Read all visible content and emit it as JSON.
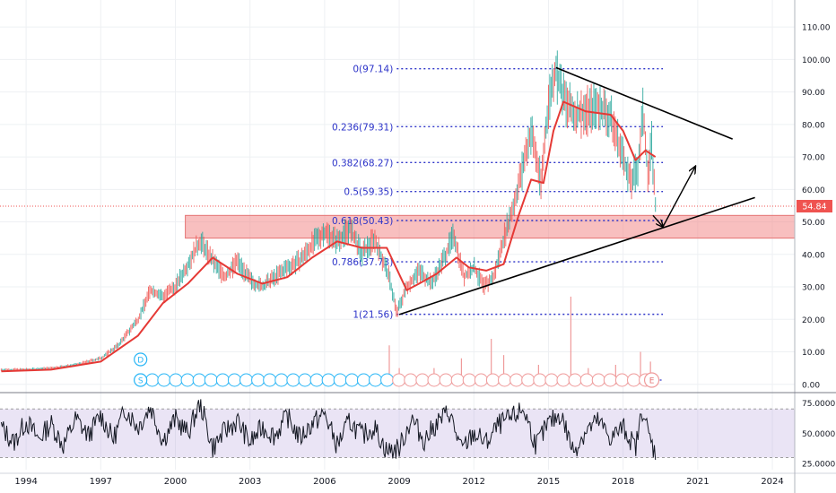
{
  "chart_data": {
    "type": "line",
    "title": "",
    "xlabel": "",
    "ylabel": "",
    "x_ticks": [
      {
        "label": "1994",
        "year": 1994.0
      },
      {
        "label": "1997",
        "year": 1997.0
      },
      {
        "label": "2000",
        "year": 2000.0
      },
      {
        "label": "2003",
        "year": 2003.0
      },
      {
        "label": "2006",
        "year": 2006.0
      },
      {
        "label": "2009",
        "year": 2009.0
      },
      {
        "label": "2012",
        "year": 2012.0
      },
      {
        "label": "2015",
        "year": 2015.0
      },
      {
        "label": "2018",
        "year": 2018.0
      },
      {
        "label": "2021",
        "year": 2021.0
      },
      {
        "label": "2024",
        "year": 2024.0
      }
    ],
    "xlim": [
      1993.0,
      2025.0
    ],
    "price_panel": {
      "ylim": [
        -2,
        115
      ],
      "y_ticks": [
        {
          "value": 0,
          "label": "0.00"
        },
        {
          "value": 10,
          "label": "10.00"
        },
        {
          "value": 20,
          "label": "20.00"
        },
        {
          "value": 30,
          "label": "30.00"
        },
        {
          "value": 40,
          "label": "40.00"
        },
        {
          "value": 50,
          "label": "50.00"
        },
        {
          "value": 60,
          "label": "60.00"
        },
        {
          "value": 70,
          "label": "70.00"
        },
        {
          "value": 80,
          "label": "80.00"
        },
        {
          "value": 90,
          "label": "90.00"
        },
        {
          "value": 100,
          "label": "100.00"
        },
        {
          "value": 110,
          "label": "110.00"
        }
      ],
      "grid": true,
      "last_price": {
        "value": 54.84,
        "label": "54.84",
        "color": "#ef5350"
      },
      "price_series": {
        "x": [
          1993.0,
          1994.0,
          1995.0,
          1996.0,
          1997.0,
          1997.7,
          1998.5,
          1999.0,
          1999.5,
          2000.0,
          2000.5,
          2001.0,
          2001.5,
          2002.0,
          2002.5,
          2003.0,
          2003.5,
          2004.0,
          2004.5,
          2005.0,
          2005.5,
          2006.0,
          2006.5,
          2007.0,
          2007.5,
          2008.0,
          2008.6,
          2008.9,
          2009.3,
          2009.8,
          2010.3,
          2010.8,
          2011.2,
          2011.6,
          2012.0,
          2012.4,
          2012.8,
          2013.2,
          2013.6,
          2014.0,
          2014.3,
          2014.7,
          2015.0,
          2015.3,
          2015.6,
          2016.0,
          2016.5,
          2017.0,
          2017.5,
          2018.0,
          2018.3,
          2018.6,
          2018.8,
          2019.0,
          2019.15,
          2019.3
        ],
        "values": [
          4.5,
          4.5,
          5.0,
          6.0,
          8.0,
          12.0,
          20.0,
          29.0,
          27.0,
          30.0,
          37.0,
          44.0,
          38.0,
          33.0,
          38.0,
          32.0,
          30.0,
          33.0,
          36.0,
          38.0,
          43.0,
          47.0,
          44.0,
          48.0,
          40.0,
          45.0,
          33.0,
          22.0,
          30.0,
          35.0,
          31.0,
          39.0,
          46.0,
          33.0,
          36.0,
          30.0,
          33.0,
          45.0,
          55.0,
          68.0,
          78.0,
          62.0,
          87.0,
          97.0,
          88.0,
          83.0,
          84.0,
          86.0,
          82.0,
          70.0,
          62.0,
          67.0,
          84.0,
          65.0,
          74.0,
          54.84
        ]
      },
      "moving_average": {
        "color": "#e53935",
        "x": [
          1993.0,
          1995.0,
          1997.0,
          1998.5,
          1999.5,
          2000.5,
          2001.5,
          2002.5,
          2003.5,
          2004.5,
          2005.5,
          2006.5,
          2007.5,
          2008.5,
          2009.3,
          2009.8,
          2010.5,
          2011.3,
          2011.8,
          2012.5,
          2013.2,
          2013.8,
          2014.3,
          2014.8,
          2015.2,
          2015.6,
          2016.5,
          2017.5,
          2018.0,
          2018.5,
          2018.9,
          2019.3
        ],
        "values": [
          4.0,
          4.5,
          7.0,
          15.0,
          25.0,
          31.0,
          39.0,
          34.0,
          31.0,
          33.0,
          39.0,
          44.0,
          42.0,
          42.0,
          29.0,
          31.0,
          34.0,
          39.0,
          36.0,
          35.0,
          37.0,
          52.0,
          63.0,
          62.0,
          78.0,
          87.0,
          84.0,
          83.0,
          78.0,
          69.0,
          72.0,
          70.0
        ]
      },
      "fibonacci_levels": [
        {
          "label": "0(97.14)",
          "value": 97.14
        },
        {
          "label": "0.236(79.31)",
          "value": 79.31
        },
        {
          "label": "0.382(68.27)",
          "value": 68.27
        },
        {
          "label": "0.5(59.35)",
          "value": 59.35
        },
        {
          "label": "0.618(50.43)",
          "value": 50.43
        },
        {
          "label": "0.786(37.73)",
          "value": 37.73
        },
        {
          "label": "1(21.56)",
          "value": 21.56
        }
      ],
      "fibonacci_color": "#2b32c8",
      "support_zone": {
        "from": 45.0,
        "to": 52.0,
        "x_start": 2000.4,
        "color": "#f28b8b"
      },
      "trendlines": [
        {
          "name": "falling resistance",
          "points": [
            [
              2015.3,
              97.5
            ],
            [
              2022.4,
              75.5
            ]
          ]
        },
        {
          "name": "rising support",
          "points": [
            [
              2009.0,
              21.5
            ],
            [
              2023.3,
              57.5
            ]
          ]
        }
      ],
      "projection_arrows": [
        {
          "points": [
            [
              2019.2,
              52.0
            ],
            [
              2019.6,
              48.5
            ]
          ]
        },
        {
          "points": [
            [
              2019.6,
              48.5
            ],
            [
              2020.9,
              67.0
            ]
          ]
        }
      ],
      "event_markers": {
        "dividend_label": "D",
        "dividend_year": 1998.6,
        "split_label": "S",
        "earnings_label": "E",
        "earnings_year": 2019.15,
        "first_year": 1998.6,
        "last_year": 2018.9,
        "recent_from": 2008.6,
        "old_color": "#29b6f6",
        "recent_color": "#ef9a9a"
      },
      "volume_bars": [
        {
          "year": 2008.6,
          "value": 12.0
        },
        {
          "year": 2009.0,
          "value": 5.0
        },
        {
          "year": 2010.4,
          "value": 5.0
        },
        {
          "year": 2011.5,
          "value": 8.0
        },
        {
          "year": 2012.7,
          "value": 14.0
        },
        {
          "year": 2013.2,
          "value": 9.0
        },
        {
          "year": 2014.6,
          "value": 6.0
        },
        {
          "year": 2015.9,
          "value": 27.0
        },
        {
          "year": 2016.6,
          "value": 5.0
        },
        {
          "year": 2017.7,
          "value": 6.0
        },
        {
          "year": 2018.7,
          "value": 10.0
        },
        {
          "year": 2019.1,
          "value": 7.0
        }
      ]
    },
    "oscillator_panel": {
      "ylim": [
        20,
        82
      ],
      "y_ticks": [
        {
          "value": 25,
          "label": "25.0000"
        },
        {
          "value": 50,
          "label": "50.0000"
        },
        {
          "value": 75,
          "label": "75.0000"
        }
      ],
      "band": [
        30,
        70
      ],
      "band_color": "#b39ddb",
      "series": {
        "x": [
          1993.0,
          1993.5,
          1994.0,
          1994.5,
          1995.0,
          1995.5,
          1996.0,
          1996.5,
          1997.0,
          1997.5,
          1998.0,
          1998.5,
          1999.0,
          1999.5,
          2000.0,
          2000.5,
          2001.0,
          2001.5,
          2002.0,
          2002.5,
          2003.0,
          2003.5,
          2004.0,
          2004.5,
          2005.0,
          2005.5,
          2006.0,
          2006.5,
          2007.0,
          2007.5,
          2008.0,
          2008.5,
          2009.0,
          2009.5,
          2010.0,
          2010.5,
          2011.0,
          2011.5,
          2012.0,
          2012.5,
          2013.0,
          2013.5,
          2014.0,
          2014.5,
          2015.0,
          2015.5,
          2016.0,
          2016.5,
          2017.0,
          2017.5,
          2018.0,
          2018.5,
          2018.8,
          2019.0,
          2019.3
        ],
        "values": [
          55,
          42,
          60,
          45,
          58,
          40,
          62,
          48,
          65,
          45,
          70,
          55,
          72,
          44,
          62,
          50,
          75,
          38,
          52,
          60,
          42,
          55,
          48,
          64,
          46,
          58,
          66,
          40,
          60,
          48,
          55,
          35,
          38,
          62,
          44,
          58,
          68,
          36,
          50,
          42,
          57,
          62,
          70,
          40,
          58,
          66,
          35,
          52,
          60,
          46,
          55,
          38,
          72,
          50,
          33
        ]
      }
    }
  }
}
